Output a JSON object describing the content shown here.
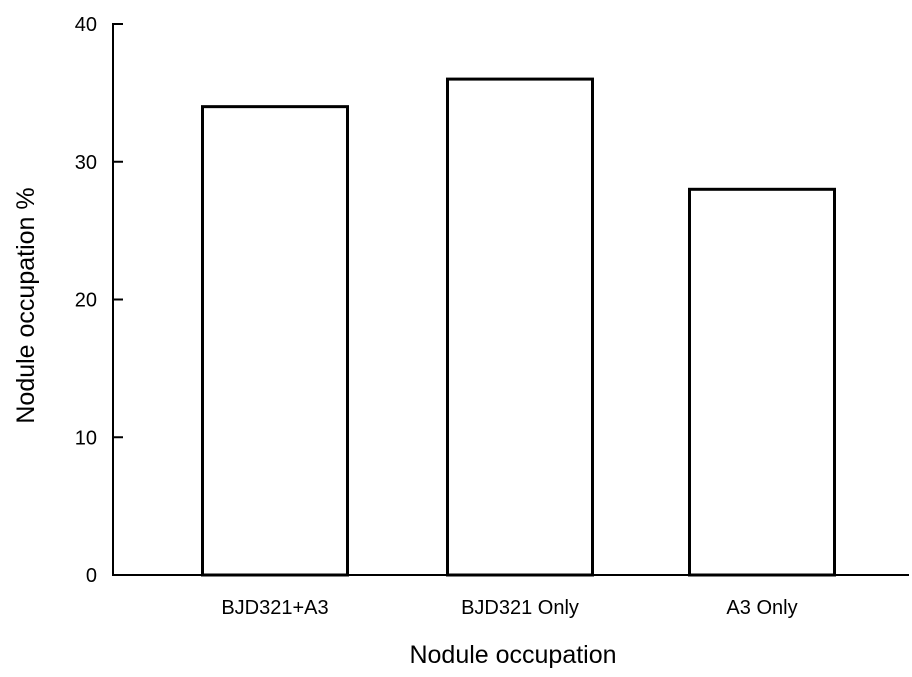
{
  "chart_data": {
    "type": "bar",
    "title": "",
    "xlabel": "Nodule occupation",
    "ylabel": "Nodule occupation %",
    "categories": [
      "BJD321+A3",
      "BJD321 Only",
      "A3 Only"
    ],
    "values": [
      34,
      36,
      28
    ],
    "ylim": [
      0,
      40
    ],
    "yticks": [
      0,
      10,
      20,
      30,
      40
    ],
    "grid": false,
    "legend": "none",
    "bar_fill": "#ffffff",
    "bar_stroke": "#000000",
    "axis_color": "#000000"
  }
}
